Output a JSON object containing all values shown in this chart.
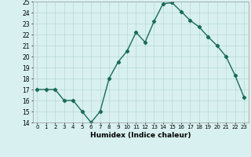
{
  "x": [
    0,
    1,
    2,
    3,
    4,
    5,
    6,
    7,
    8,
    9,
    10,
    11,
    12,
    13,
    14,
    15,
    16,
    17,
    18,
    19,
    20,
    21,
    22,
    23
  ],
  "y": [
    17,
    17,
    17,
    16,
    16,
    15,
    14,
    15,
    18,
    19.5,
    20.5,
    22.2,
    21.3,
    23.2,
    24.8,
    24.9,
    24.1,
    23.3,
    22.7,
    21.8,
    21,
    20,
    18.3,
    16.3
  ],
  "title": "",
  "xlabel": "Humidex (Indice chaleur)",
  "ylabel": "",
  "xlim": [
    -0.5,
    23.5
  ],
  "ylim": [
    14,
    25
  ],
  "yticks": [
    14,
    15,
    16,
    17,
    18,
    19,
    20,
    21,
    22,
    23,
    24,
    25
  ],
  "xticks": [
    0,
    1,
    2,
    3,
    4,
    5,
    6,
    7,
    8,
    9,
    10,
    11,
    12,
    13,
    14,
    15,
    16,
    17,
    18,
    19,
    20,
    21,
    22,
    23
  ],
  "line_color": "#1a6b5a",
  "marker": "D",
  "marker_size": 2.2,
  "bg_color": "#d8f0f0",
  "grid_color": "#b8d8d8",
  "line_width": 1.0
}
